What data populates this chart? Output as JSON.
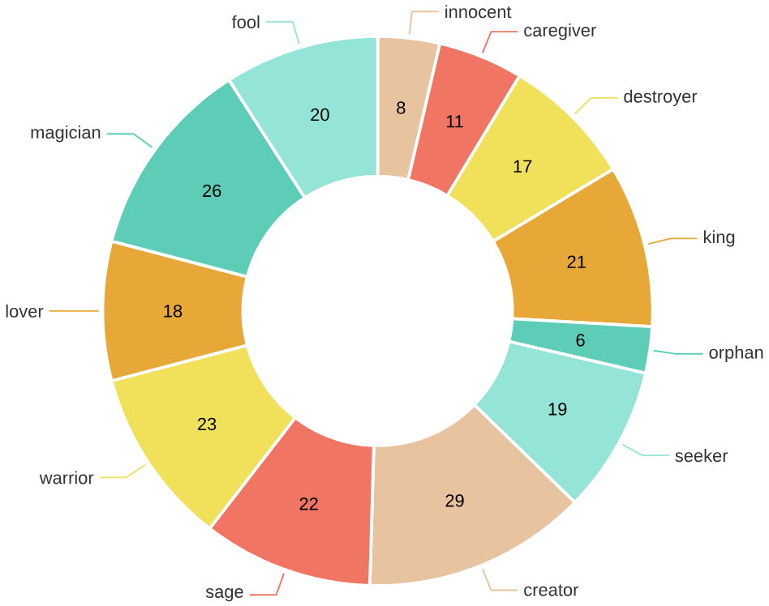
{
  "chart_data": {
    "type": "donut",
    "categories": [
      "innocent",
      "caregiver",
      "destroyer",
      "king",
      "orphan",
      "seeker",
      "creator",
      "sage",
      "warrior",
      "lover",
      "magician",
      "fool"
    ],
    "values": [
      8,
      11,
      17,
      21,
      6,
      19,
      29,
      22,
      23,
      18,
      26,
      20
    ],
    "colors": [
      "#e8c3a0",
      "#f07562",
      "#f0e05a",
      "#e8a838",
      "#5ecdb8",
      "#95e4d8",
      "#e8c3a0",
      "#f07562",
      "#f0e05a",
      "#e8a838",
      "#5ecdb8",
      "#95e4d8"
    ],
    "data_labels": true
  }
}
